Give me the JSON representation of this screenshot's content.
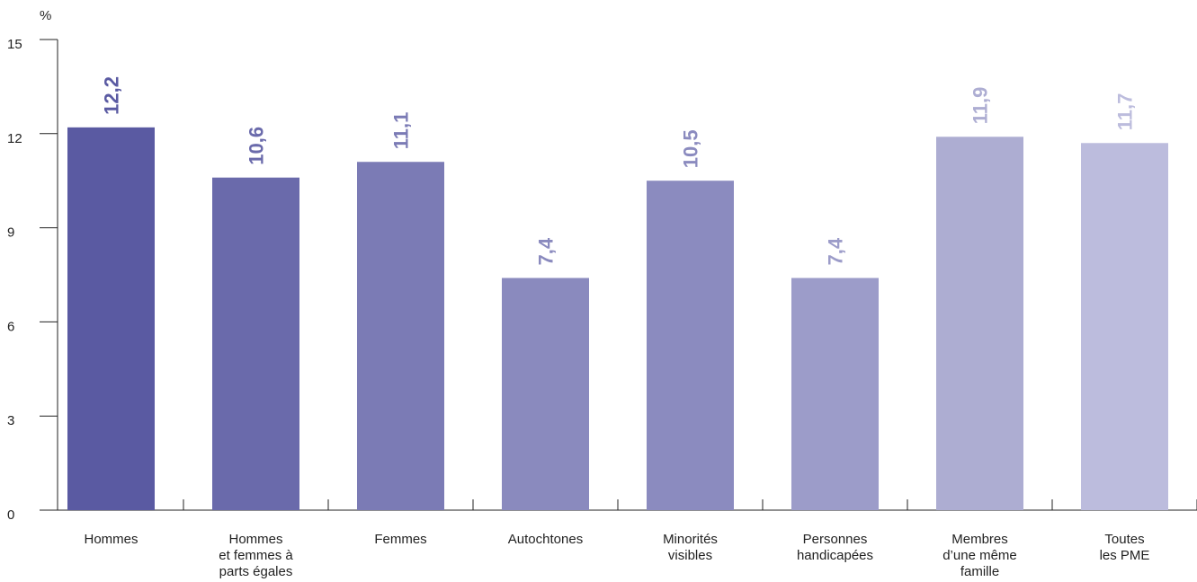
{
  "chart_data": {
    "type": "bar",
    "ylabel": "%",
    "categories": [
      "Hommes",
      "Hommes\net femmes à\nparts égales",
      "Femmes",
      "Autochtones",
      "Minorités\nvisibles",
      "Personnes\nhandicapées",
      "Membres\nd’une même\nfamille",
      "Toutes\nles PME"
    ],
    "values": [
      12.2,
      10.6,
      11.1,
      7.4,
      10.5,
      7.4,
      11.9,
      11.7
    ],
    "value_labels": [
      "12,2",
      "10,6",
      "11,1",
      "7,4",
      "10,5",
      "7,4",
      "11,9",
      "11,7"
    ],
    "colors": [
      "#5a5aa2",
      "#6a6aab",
      "#7b7bb5",
      "#8a8abe",
      "#8b8bbf",
      "#9c9cc9",
      "#adadd2",
      "#bcbcdd"
    ],
    "ylim": [
      0,
      15
    ],
    "yticks": [
      0,
      3,
      6,
      9,
      12,
      15
    ]
  }
}
